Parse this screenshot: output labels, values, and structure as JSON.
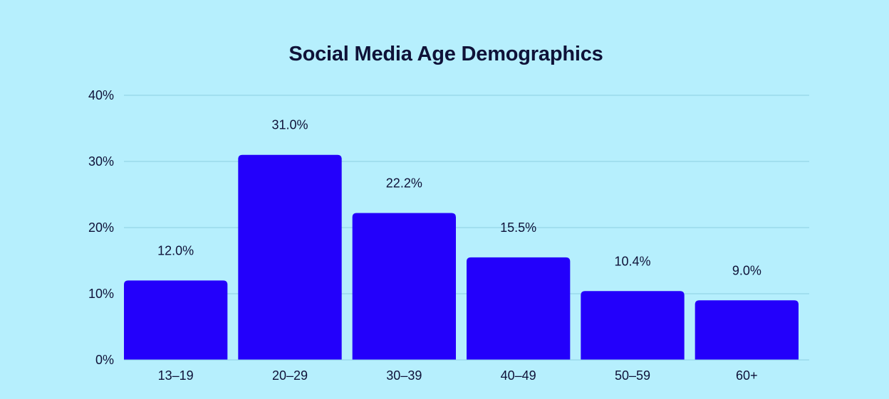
{
  "chart_data": {
    "type": "bar",
    "title": "Social Media Age Demographics",
    "xlabel": "",
    "ylabel": "",
    "categories": [
      "13–19",
      "20–29",
      "30–39",
      "40–49",
      "50–59",
      "60+"
    ],
    "values": [
      12.0,
      31.0,
      22.2,
      15.5,
      10.4,
      9.0
    ],
    "value_labels": [
      "12.0%",
      "31.0%",
      "22.2%",
      "15.5%",
      "10.4%",
      "9.0%"
    ],
    "ylim": [
      0,
      40
    ],
    "yticks": [
      0,
      10,
      20,
      30,
      40
    ],
    "ytick_labels": [
      "0%",
      "10%",
      "20%",
      "30%",
      "40%"
    ],
    "grid": true,
    "legend": "none",
    "colors": {
      "background": "#b6effd",
      "bar": "#2300fb",
      "grid": "#8ccfe1",
      "text": "#0f1238"
    }
  }
}
